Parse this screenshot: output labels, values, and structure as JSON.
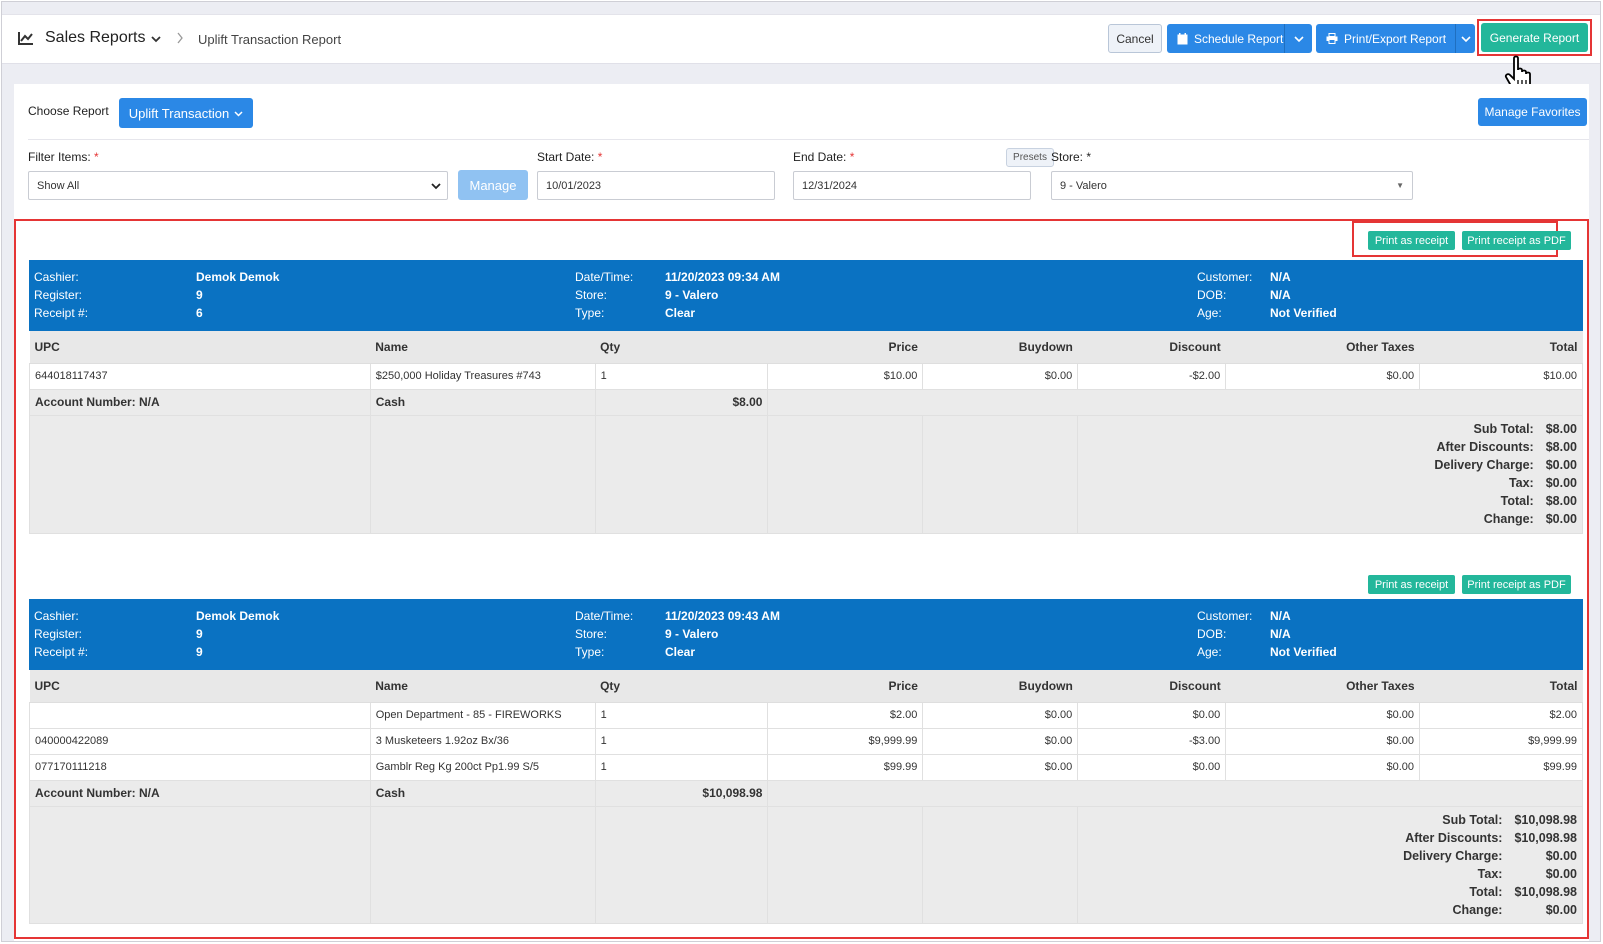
{
  "header": {
    "title": "Sales Reports",
    "breadcrumb": "Uplift Transaction Report",
    "cancel_label": "Cancel",
    "schedule_label": "Schedule Report",
    "print_label": "Print/Export Report",
    "generate_label": "Generate Report"
  },
  "controls": {
    "choose_label": "Choose Report",
    "choose_value": "Uplift Transaction",
    "favorites_label": "Manage Favorites",
    "filter_label": "Filter Items:",
    "filter_value": "Show All",
    "manage_label": "Manage",
    "start_label": "Start Date:",
    "start_value": "10/01/2023",
    "end_label": "End Date:",
    "end_value": "12/31/2024",
    "presets_label": "Presets",
    "store_label": "Store: *",
    "store_value": "9 - Valero",
    "required_mark": "*"
  },
  "receipt_actions": {
    "print_receipt": "Print as receipt",
    "print_pdf": "Print receipt as PDF"
  },
  "head_labels": {
    "cashier": "Cashier:",
    "register": "Register:",
    "receipt": "Receipt #:",
    "datetime": "Date/Time:",
    "store": "Store:",
    "type": "Type:",
    "customer": "Customer:",
    "dob": "DOB:",
    "age": "Age:"
  },
  "columns": [
    "UPC",
    "Name",
    "Qty",
    "Price",
    "Buydown",
    "Discount",
    "Other Taxes",
    "Total"
  ],
  "totals_labels": [
    "Sub Total:",
    "After Discounts:",
    "Delivery Charge:",
    "Tax:",
    "Total:",
    "Change:"
  ],
  "receipts": [
    {
      "cashier": "Demok Demok",
      "register": "9",
      "receipt": "6",
      "datetime": "11/20/2023 09:34 AM",
      "store": "9 - Valero",
      "type": "Clear",
      "customer": "N/A",
      "dob": "N/A",
      "age": "Not Verified",
      "items": [
        {
          "upc": "644018117437",
          "name": "$250,000 Holiday Treasures #743",
          "qty": "1",
          "price": "$10.00",
          "buydown": "$0.00",
          "discount": "-$2.00",
          "other_taxes": "$0.00",
          "total": "$10.00"
        }
      ],
      "account": "Account Number: N/A",
      "payment": "Cash",
      "payment_amount": "$8.00",
      "totals": [
        "$8.00",
        "$8.00",
        "$0.00",
        "$0.00",
        "$8.00",
        "$0.00"
      ]
    },
    {
      "cashier": "Demok Demok",
      "register": "9",
      "receipt": "9",
      "datetime": "11/20/2023 09:43 AM",
      "store": "9 - Valero",
      "type": "Clear",
      "customer": "N/A",
      "dob": "N/A",
      "age": "Not Verified",
      "items": [
        {
          "upc": "",
          "name": "Open Department - 85 - FIREWORKS",
          "qty": "1",
          "price": "$2.00",
          "buydown": "$0.00",
          "discount": "$0.00",
          "other_taxes": "$0.00",
          "total": "$2.00"
        },
        {
          "upc": "040000422089",
          "name": "3 Musketeers 1.92oz Bx/36",
          "qty": "1",
          "price": "$9,999.99",
          "buydown": "$0.00",
          "discount": "-$3.00",
          "other_taxes": "$0.00",
          "total": "$9,999.99"
        },
        {
          "upc": "077170111218",
          "name": "Gamblr Reg Kg 200ct Pp1.99 S/5",
          "qty": "1",
          "price": "$99.99",
          "buydown": "$0.00",
          "discount": "$0.00",
          "other_taxes": "$0.00",
          "total": "$99.99"
        }
      ],
      "account": "Account Number: N/A",
      "payment": "Cash",
      "payment_amount": "$10,098.98",
      "totals": [
        "$10,098.98",
        "$10,098.98",
        "$0.00",
        "$0.00",
        "$10,098.98",
        "$0.00"
      ]
    }
  ],
  "colors": {
    "primary_blue": "#2b88e6",
    "teal": "#23b79b",
    "receipt_header": "#0a72c2",
    "highlight_red": "#e53535"
  }
}
